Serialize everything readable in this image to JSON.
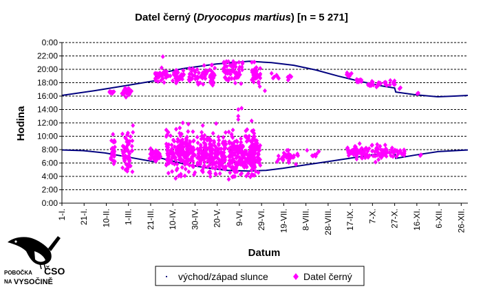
{
  "chart_data": {
    "type": "scatter",
    "title_plain": "Datel černý (",
    "title_italic": "Dryocopus martius",
    "title_tail": ") [n = 5 271]",
    "xlabel": "Datum",
    "ylabel": "Hodina",
    "x_tick_labels": [
      "1-I.",
      "21-I.",
      "10-II.",
      "1-III.",
      "21-III.",
      "10-IV.",
      "30-IV.",
      "20-V.",
      "9-VI.",
      "29-VI.",
      "19-VII.",
      "8-VIII.",
      "28-VIII.",
      "17-IX.",
      "7-X.",
      "27-X.",
      "16-XI.",
      "6-XII.",
      "26-XII."
    ],
    "x_tick_days": [
      1,
      21,
      41,
      61,
      81,
      101,
      121,
      141,
      161,
      181,
      201,
      221,
      241,
      261,
      281,
      301,
      321,
      341,
      361
    ],
    "xlim": [
      1,
      367
    ],
    "y_tick_labels": [
      "0:00",
      "2:00",
      "4:00",
      "6:00",
      "8:00",
      "10:00",
      "12:00",
      "14:00",
      "16:00",
      "18:00",
      "20:00",
      "22:00",
      "0:00"
    ],
    "ylim_hours": [
      0,
      24
    ],
    "grid": "horizontal dashed",
    "legend_position": "bottom-right",
    "series": [
      {
        "name": "východ/západ slunce",
        "kind": "line",
        "color": "#00007f",
        "sunset_points": [
          [
            1,
            16.1
          ],
          [
            30,
            16.8
          ],
          [
            60,
            17.6
          ],
          [
            85,
            18.3
          ],
          [
            86,
            19.3
          ],
          [
            110,
            20.1
          ],
          [
            140,
            20.8
          ],
          [
            170,
            21.2
          ],
          [
            190,
            21.0
          ],
          [
            210,
            20.6
          ],
          [
            230,
            19.9
          ],
          [
            250,
            19.0
          ],
          [
            270,
            18.2
          ],
          [
            290,
            17.5
          ],
          [
            301,
            17.2
          ],
          [
            302,
            16.6
          ],
          [
            320,
            16.2
          ],
          [
            340,
            15.9
          ],
          [
            355,
            16.0
          ],
          [
            367,
            16.1
          ]
        ],
        "sunrise_points": [
          [
            1,
            7.95
          ],
          [
            20,
            7.85
          ],
          [
            40,
            7.5
          ],
          [
            60,
            6.9
          ],
          [
            85,
            6.15
          ],
          [
            86,
            6.9
          ],
          [
            110,
            5.9
          ],
          [
            130,
            5.3
          ],
          [
            150,
            4.9
          ],
          [
            170,
            4.8
          ],
          [
            185,
            4.9
          ],
          [
            200,
            5.2
          ],
          [
            220,
            5.7
          ],
          [
            240,
            6.2
          ],
          [
            260,
            6.7
          ],
          [
            280,
            7.2
          ],
          [
            301,
            7.6
          ],
          [
            302,
            6.7
          ],
          [
            320,
            7.2
          ],
          [
            340,
            7.7
          ],
          [
            367,
            7.95
          ]
        ]
      },
      {
        "name": "Datel černý",
        "kind": "points",
        "color": "#ff00ff",
        "evening_clusters": [
          [
            46,
            16.6,
            0.5,
            4,
            10
          ],
          [
            60,
            16.6,
            1.2,
            10,
            24
          ],
          [
            87,
            19.2,
            0.6,
            6,
            10
          ],
          [
            98,
            19.0,
            1.6,
            26,
            60
          ],
          [
            127,
            19.2,
            2.4,
            24,
            70
          ],
          [
            155,
            19.7,
            2.2,
            18,
            60
          ],
          [
            176,
            19.1,
            2.4,
            8,
            40
          ],
          [
            195,
            18.8,
            0.4,
            8,
            6
          ],
          [
            206,
            18.8,
            0.8,
            4,
            6
          ],
          [
            260,
            19.2,
            0.6,
            6,
            10
          ],
          [
            269,
            18.4,
            0.5,
            6,
            12
          ],
          [
            283,
            17.8,
            0.6,
            12,
            18
          ],
          [
            297,
            17.9,
            0.6,
            12,
            12
          ],
          [
            306,
            17.2,
            0.4,
            2,
            2
          ],
          [
            322,
            16.3,
            0.2,
            2,
            2
          ]
        ],
        "morning_clusters": [
          [
            47,
            7.8,
            2.6,
            4,
            24
          ],
          [
            60,
            7.6,
            4.0,
            9,
            60
          ],
          [
            85,
            7.2,
            1.6,
            10,
            40
          ],
          [
            108,
            7.5,
            4.5,
            26,
            180
          ],
          [
            136,
            7.2,
            4.2,
            26,
            190
          ],
          [
            163,
            7.4,
            4.5,
            24,
            200
          ],
          [
            176,
            7.4,
            4.0,
            8,
            70
          ],
          [
            205,
            7.0,
            1.2,
            18,
            30
          ],
          [
            230,
            7.3,
            0.8,
            8,
            6
          ],
          [
            268,
            7.6,
            1.6,
            20,
            60
          ],
          [
            286,
            7.6,
            1.6,
            16,
            50
          ],
          [
            303,
            7.5,
            1.0,
            14,
            25
          ],
          [
            325,
            7.2,
            0.3,
            2,
            2
          ]
        ],
        "scattered_points": [
          [
            92,
            21.9
          ],
          [
            160,
            12.5
          ],
          [
            160,
            14.0
          ],
          [
            160,
            13.0
          ],
          [
            163,
            14.2
          ],
          [
            168,
            11.0
          ],
          [
            172,
            12.3
          ],
          [
            110,
            12.0
          ],
          [
            115,
            11.8
          ],
          [
            128,
            11.6
          ],
          [
            140,
            11.9
          ],
          [
            65,
            11.6
          ],
          [
            65,
            10.6
          ],
          [
            47,
            10.3
          ],
          [
            184,
            16.8
          ],
          [
            190,
            19.4
          ],
          [
            195,
            6.2
          ],
          [
            222,
            7.9
          ],
          [
            212,
            5.8
          ]
        ]
      }
    ]
  },
  "logo": {
    "line1": "POBOČKA",
    "line2": "NA",
    "big": "ČSO",
    "place": "VYSOČINĚ"
  }
}
